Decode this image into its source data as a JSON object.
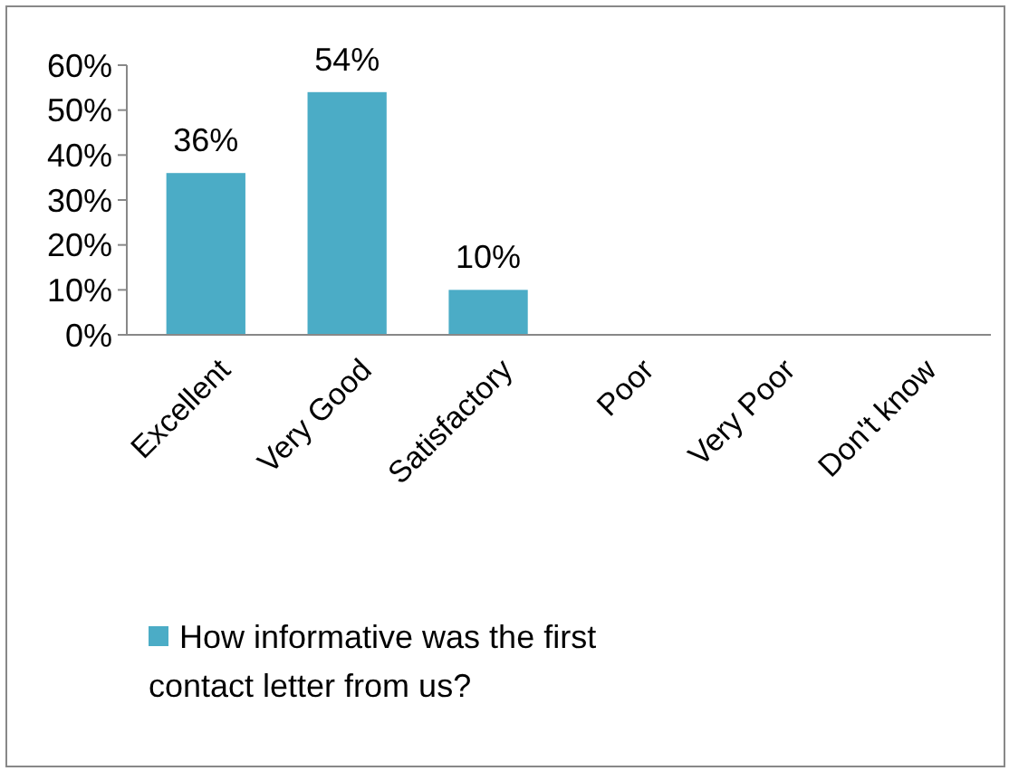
{
  "chart_data": {
    "type": "bar",
    "categories": [
      "Excellent",
      "Very Good",
      "Satisfactory",
      "Poor",
      "Very Poor",
      "Don't know"
    ],
    "series": [
      {
        "name": "How informative was the first contact letter from us?",
        "color": "#4bacc6",
        "values": [
          36,
          54,
          10,
          0,
          0,
          0
        ],
        "value_labels": [
          "36%",
          "54%",
          "10%",
          null,
          null,
          null
        ]
      }
    ],
    "ylim": [
      0,
      60
    ],
    "yticks": [
      {
        "value": 0,
        "label": "0%"
      },
      {
        "value": 10,
        "label": "10%"
      },
      {
        "value": 20,
        "label": "20%"
      },
      {
        "value": 30,
        "label": "30%"
      },
      {
        "value": 40,
        "label": "40%"
      },
      {
        "value": 50,
        "label": "50%"
      },
      {
        "value": 60,
        "label": "60%"
      }
    ],
    "grid": false,
    "legend": "bottom"
  }
}
